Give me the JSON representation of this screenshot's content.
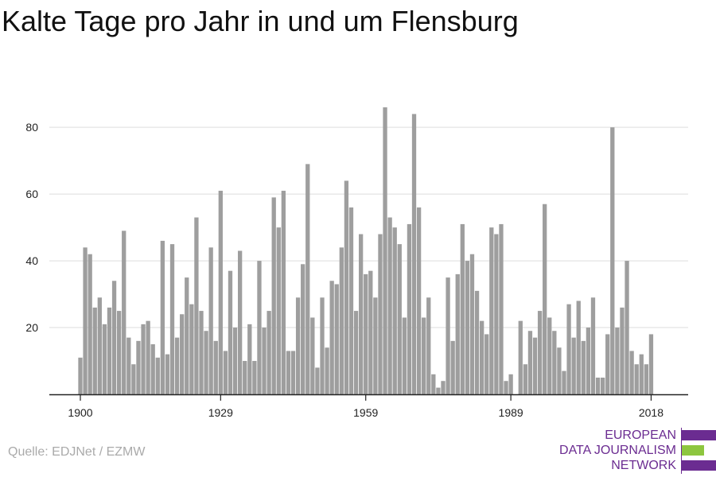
{
  "chart_data": {
    "type": "bar",
    "title": "Kalte Tage pro Jahr in und um Flensburg",
    "xlabel": "",
    "ylabel": "",
    "ylim": [
      0,
      86
    ],
    "yticks": [
      20,
      40,
      60,
      80
    ],
    "xticks": [
      1900,
      1929,
      1959,
      1989,
      2018
    ],
    "grid": true,
    "bar_color": "#9e9e9e",
    "x": [
      1900,
      1901,
      1902,
      1903,
      1904,
      1905,
      1906,
      1907,
      1908,
      1909,
      1910,
      1911,
      1912,
      1913,
      1914,
      1915,
      1916,
      1917,
      1918,
      1919,
      1920,
      1921,
      1922,
      1923,
      1924,
      1925,
      1926,
      1927,
      1928,
      1929,
      1930,
      1931,
      1932,
      1933,
      1934,
      1935,
      1936,
      1937,
      1938,
      1939,
      1940,
      1941,
      1942,
      1943,
      1944,
      1945,
      1946,
      1947,
      1948,
      1949,
      1950,
      1951,
      1952,
      1953,
      1954,
      1955,
      1956,
      1957,
      1958,
      1959,
      1960,
      1961,
      1962,
      1963,
      1964,
      1965,
      1966,
      1967,
      1968,
      1969,
      1970,
      1971,
      1972,
      1973,
      1974,
      1975,
      1976,
      1977,
      1978,
      1979,
      1980,
      1981,
      1982,
      1983,
      1984,
      1985,
      1986,
      1987,
      1988,
      1989,
      1990,
      1991,
      1992,
      1993,
      1994,
      1995,
      1996,
      1997,
      1998,
      1999,
      2000,
      2001,
      2002,
      2003,
      2004,
      2005,
      2006,
      2007,
      2008,
      2009,
      2010,
      2011,
      2012,
      2013,
      2014,
      2015,
      2016,
      2017,
      2018
    ],
    "values": [
      11,
      44,
      42,
      26,
      29,
      21,
      26,
      34,
      25,
      49,
      17,
      9,
      16,
      21,
      22,
      15,
      11,
      46,
      12,
      45,
      17,
      24,
      35,
      27,
      53,
      25,
      19,
      44,
      16,
      61,
      13,
      37,
      20,
      43,
      10,
      21,
      10,
      40,
      20,
      25,
      59,
      50,
      61,
      13,
      13,
      29,
      39,
      69,
      23,
      8,
      29,
      14,
      34,
      33,
      44,
      64,
      56,
      25,
      48,
      36,
      37,
      29,
      48,
      86,
      53,
      50,
      45,
      23,
      51,
      84,
      56,
      23,
      29,
      6,
      2,
      4,
      35,
      16,
      36,
      51,
      40,
      42,
      31,
      22,
      18,
      50,
      48,
      51,
      4,
      6,
      0,
      22,
      9,
      19,
      17,
      25,
      57,
      23,
      19,
      14,
      7,
      27,
      17,
      28,
      16,
      20,
      29,
      5,
      5,
      18,
      80,
      20,
      26,
      40,
      13,
      9,
      12,
      9,
      18
    ]
  },
  "source": "Quelle: EDJNet / EZMW",
  "logo": {
    "lines": [
      "EUROPEAN",
      "DATA JOURNALISM",
      "NETWORK"
    ],
    "colors": {
      "purple": "#6b2c91",
      "green": "#8dc63f"
    }
  }
}
